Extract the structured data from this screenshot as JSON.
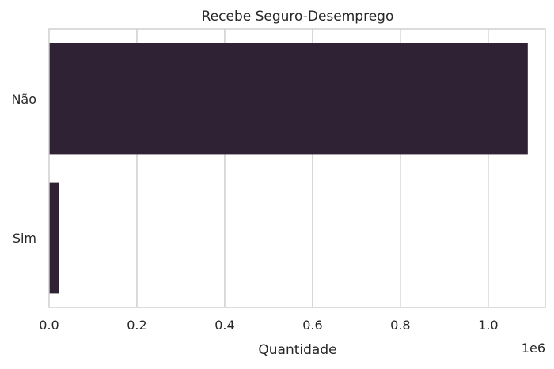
{
  "chart_data": {
    "type": "bar",
    "orientation": "horizontal",
    "title": "Recebe Seguro-Desemprego",
    "xlabel": "Quantidade",
    "ylabel": "",
    "categories": [
      "Não",
      "Sim"
    ],
    "values": [
      1090000,
      22000
    ],
    "xlim": [
      0,
      1130000
    ],
    "x_tick_values": [
      0,
      200000,
      400000,
      600000,
      800000,
      1000000
    ],
    "x_tick_labels": [
      "0.0",
      "0.2",
      "0.4",
      "0.6",
      "0.8",
      "1.0"
    ],
    "x_offset_label": "1e6",
    "bar_color": "#2e2234",
    "grid": "vertical"
  }
}
